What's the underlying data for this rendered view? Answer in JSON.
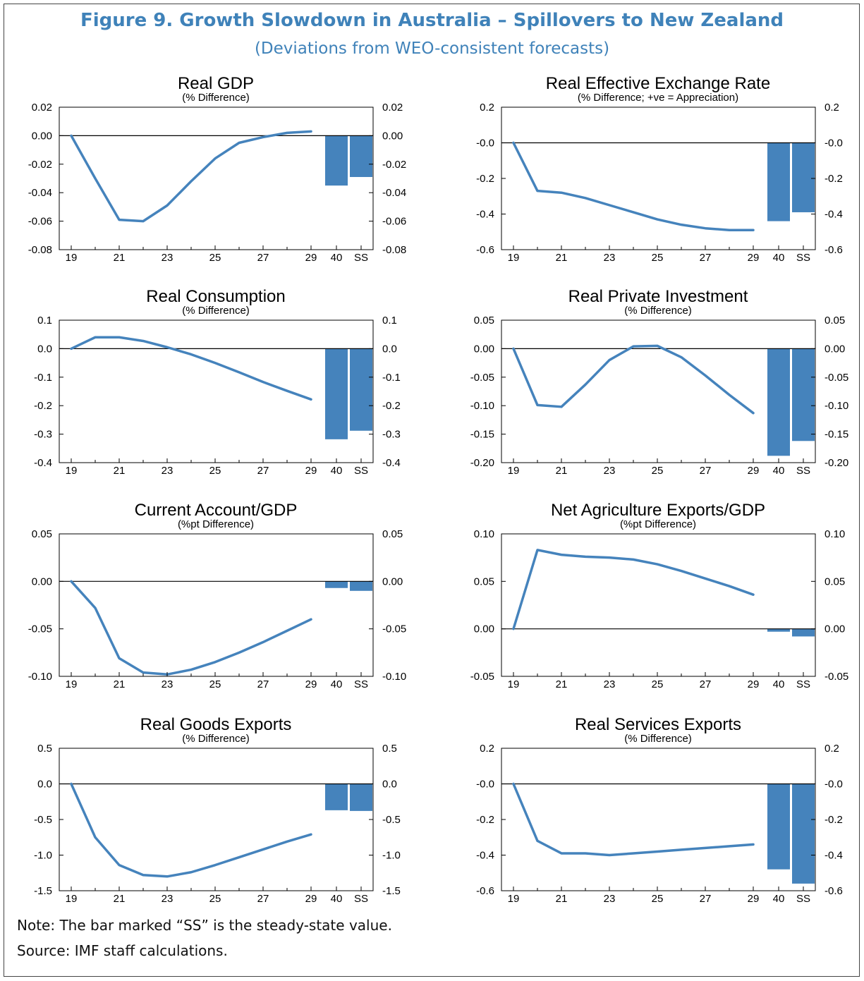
{
  "title": "Figure 9. Growth Slowdown in Australia – Spillovers to New Zealand",
  "subtitle": "(Deviations from WEO-consistent forecasts)",
  "note": "Note: The bar marked “SS” is the steady-state value.",
  "source": "Source: IMF staff calculations.",
  "colors": {
    "series": "#4583bc",
    "bar": "#4583bc",
    "title": "#3f82b9"
  },
  "chart_data": [
    {
      "type": "line",
      "title": "Real GDP",
      "subtitle": "(% Difference)",
      "x": [
        19,
        20,
        21,
        22,
        23,
        24,
        25,
        26,
        27,
        28,
        29
      ],
      "xticks": [
        "19",
        "21",
        "23",
        "25",
        "27",
        "29",
        "40",
        "SS"
      ],
      "values": [
        0.0,
        -0.03,
        -0.059,
        -0.06,
        -0.049,
        -0.032,
        -0.016,
        -0.005,
        -0.001,
        0.002,
        0.003
      ],
      "bars": [
        {
          "label": "40",
          "value": -0.035
        },
        {
          "label": "SS",
          "value": -0.029
        }
      ],
      "ylim": [
        -0.08,
        0.02
      ],
      "yticks": [
        "0.02",
        "0.00",
        "-0.02",
        "-0.04",
        "-0.06",
        "-0.08"
      ]
    },
    {
      "type": "line",
      "title": "Real Effective Exchange Rate",
      "subtitle": "(% Difference; +ve = Appreciation)",
      "x": [
        19,
        20,
        21,
        22,
        23,
        24,
        25,
        26,
        27,
        28,
        29
      ],
      "xticks": [
        "19",
        "21",
        "23",
        "25",
        "27",
        "29",
        "40",
        "SS"
      ],
      "values": [
        0.0,
        -0.27,
        -0.28,
        -0.31,
        -0.35,
        -0.39,
        -0.43,
        -0.46,
        -0.48,
        -0.49,
        -0.49
      ],
      "bars": [
        {
          "label": "40",
          "value": -0.44
        },
        {
          "label": "SS",
          "value": -0.39
        }
      ],
      "ylim": [
        -0.6,
        0.2
      ],
      "yticks": [
        "0.2",
        "-0.0",
        "-0.2",
        "-0.4",
        "-0.6"
      ]
    },
    {
      "type": "line",
      "title": "Real Consumption",
      "subtitle": "(% Difference)",
      "x": [
        19,
        20,
        21,
        22,
        23,
        24,
        25,
        26,
        27,
        28,
        29
      ],
      "xticks": [
        "19",
        "21",
        "23",
        "25",
        "27",
        "29",
        "40",
        "SS"
      ],
      "values": [
        0.0,
        0.04,
        0.04,
        0.027,
        0.005,
        -0.02,
        -0.05,
        -0.083,
        -0.117,
        -0.148,
        -0.178
      ],
      "bars": [
        {
          "label": "40",
          "value": -0.318
        },
        {
          "label": "SS",
          "value": -0.288
        }
      ],
      "ylim": [
        -0.4,
        0.1
      ],
      "yticks": [
        "0.1",
        "0.0",
        "-0.1",
        "-0.2",
        "-0.3",
        "-0.4"
      ]
    },
    {
      "type": "line",
      "title": "Real Private Investment",
      "subtitle": "(% Difference)",
      "x": [
        19,
        20,
        21,
        22,
        23,
        24,
        25,
        26,
        27,
        28,
        29
      ],
      "xticks": [
        "19",
        "21",
        "23",
        "25",
        "27",
        "29",
        "40",
        "SS"
      ],
      "values": [
        0.0,
        -0.099,
        -0.102,
        -0.063,
        -0.02,
        0.004,
        0.005,
        -0.015,
        -0.047,
        -0.081,
        -0.113
      ],
      "bars": [
        {
          "label": "40",
          "value": -0.188
        },
        {
          "label": "SS",
          "value": -0.162
        }
      ],
      "ylim": [
        -0.2,
        0.05
      ],
      "yticks": [
        "0.05",
        "0.00",
        "-0.05",
        "-0.10",
        "-0.15",
        "-0.20"
      ]
    },
    {
      "type": "line",
      "title": "Current Account/GDP",
      "subtitle": "(%pt Difference)",
      "x": [
        19,
        20,
        21,
        22,
        23,
        24,
        25,
        26,
        27,
        28,
        29
      ],
      "xticks": [
        "19",
        "21",
        "23",
        "25",
        "27",
        "29",
        "40",
        "SS"
      ],
      "values": [
        0.0,
        -0.028,
        -0.081,
        -0.096,
        -0.098,
        -0.093,
        -0.085,
        -0.075,
        -0.064,
        -0.052,
        -0.04
      ],
      "bars": [
        {
          "label": "40",
          "value": -0.007
        },
        {
          "label": "SS",
          "value": -0.01
        }
      ],
      "ylim": [
        -0.1,
        0.05
      ],
      "yticks": [
        "0.05",
        "0.00",
        "-0.05",
        "-0.10"
      ]
    },
    {
      "type": "line",
      "title": "Net Agriculture Exports/GDP",
      "subtitle": "(%pt Difference)",
      "x": [
        19,
        20,
        21,
        22,
        23,
        24,
        25,
        26,
        27,
        28,
        29
      ],
      "xticks": [
        "19",
        "21",
        "23",
        "25",
        "27",
        "29",
        "40",
        "SS"
      ],
      "values": [
        0.0,
        0.083,
        0.078,
        0.076,
        0.075,
        0.073,
        0.068,
        0.061,
        0.053,
        0.045,
        0.036
      ],
      "bars": [
        {
          "label": "40",
          "value": -0.003
        },
        {
          "label": "SS",
          "value": -0.008
        }
      ],
      "ylim": [
        -0.05,
        0.1
      ],
      "yticks": [
        "0.10",
        "0.05",
        "0.00",
        "-0.05"
      ]
    },
    {
      "type": "line",
      "title": "Real Goods Exports",
      "subtitle": "(% Difference)",
      "x": [
        19,
        20,
        21,
        22,
        23,
        24,
        25,
        26,
        27,
        28,
        29
      ],
      "xticks": [
        "19",
        "21",
        "23",
        "25",
        "27",
        "29",
        "40",
        "SS"
      ],
      "values": [
        0.0,
        -0.75,
        -1.14,
        -1.28,
        -1.3,
        -1.24,
        -1.14,
        -1.03,
        -0.92,
        -0.81,
        -0.71
      ],
      "bars": [
        {
          "label": "40",
          "value": -0.37
        },
        {
          "label": "SS",
          "value": -0.38
        }
      ],
      "ylim": [
        -1.5,
        0.5
      ],
      "yticks": [
        "0.5",
        "0.0",
        "-0.5",
        "-1.0",
        "-1.5"
      ]
    },
    {
      "type": "line",
      "title": "Real Services Exports",
      "subtitle": "(% Difference)",
      "x": [
        19,
        20,
        21,
        22,
        23,
        24,
        25,
        26,
        27,
        28,
        29
      ],
      "xticks": [
        "19",
        "21",
        "23",
        "25",
        "27",
        "29",
        "40",
        "SS"
      ],
      "values": [
        0.0,
        -0.32,
        -0.39,
        -0.39,
        -0.4,
        -0.39,
        -0.38,
        -0.37,
        -0.36,
        -0.35,
        -0.34
      ],
      "bars": [
        {
          "label": "40",
          "value": -0.48
        },
        {
          "label": "SS",
          "value": -0.56
        }
      ],
      "ylim": [
        -0.6,
        0.2
      ],
      "yticks": [
        "0.2",
        "-0.0",
        "-0.2",
        "-0.4",
        "-0.6"
      ]
    }
  ]
}
